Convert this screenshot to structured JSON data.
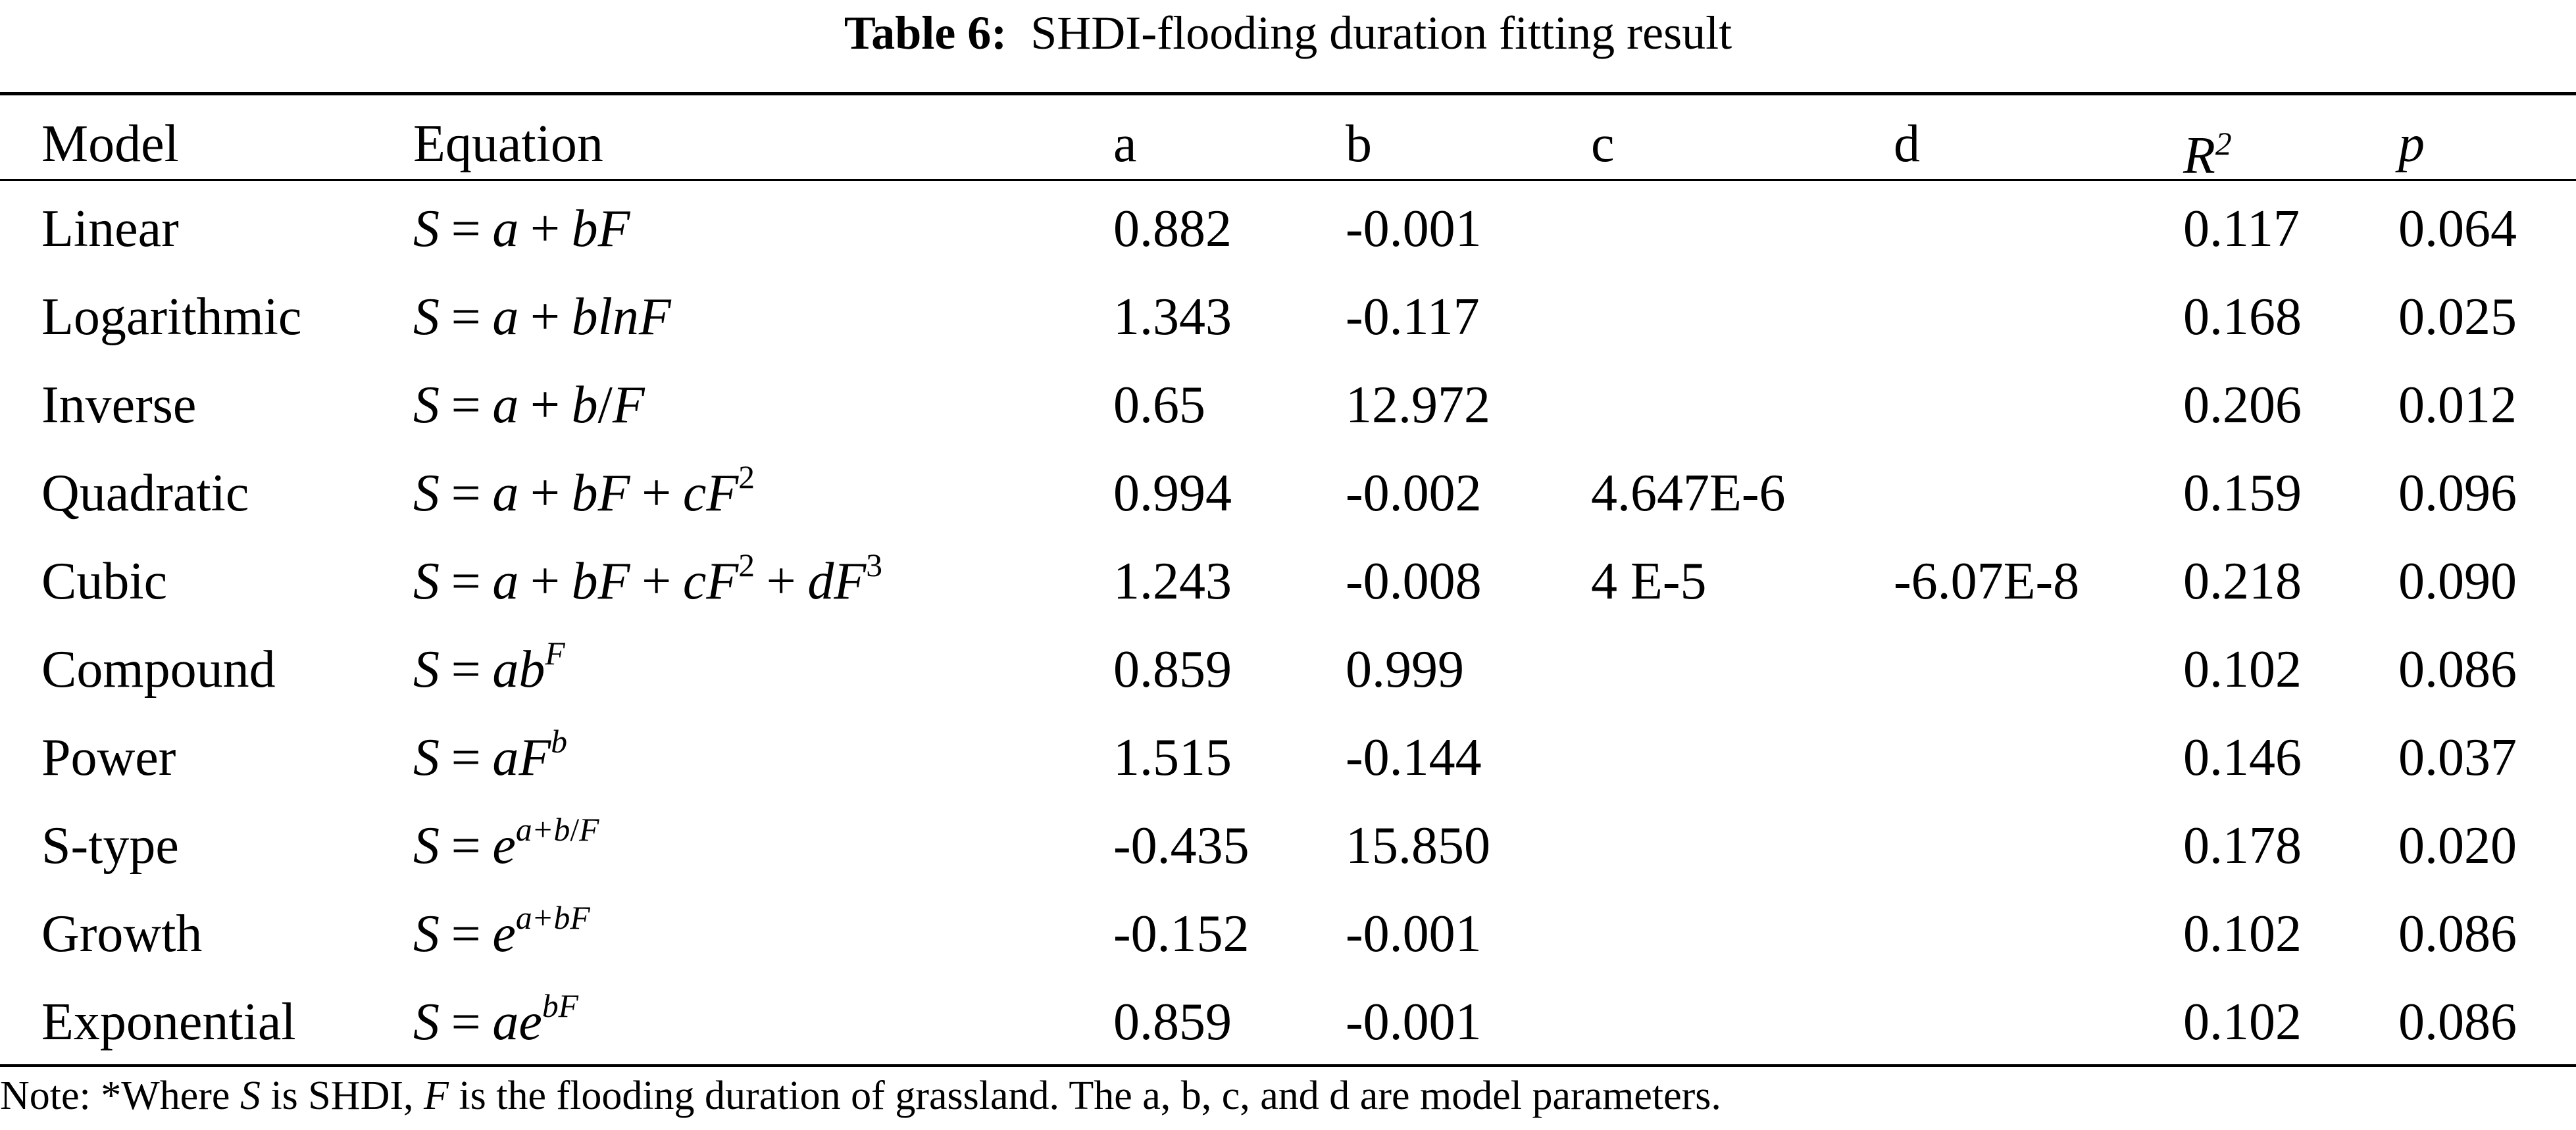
{
  "caption": {
    "label": "Table 6:",
    "text": "SHDI-flooding duration fitting result"
  },
  "headers": {
    "model": "Model",
    "equation": "Equation",
    "a": "a",
    "b": "b",
    "c": "c",
    "d": "d",
    "r2_base": "R",
    "r2_exp": "2",
    "p": "p"
  },
  "rows": [
    {
      "model": "Linear",
      "a": "0.882",
      "b": "-0.001",
      "c": "",
      "d": "",
      "r2": "0.117",
      "p": "0.064"
    },
    {
      "model": "Logarithmic",
      "a": "1.343",
      "b": "-0.117",
      "c": "",
      "d": "",
      "r2": "0.168",
      "p": "0.025"
    },
    {
      "model": "Inverse",
      "a": "0.65",
      "b": "12.972",
      "c": "",
      "d": "",
      "r2": "0.206",
      "p": "0.012"
    },
    {
      "model": "Quadratic",
      "a": "0.994",
      "b": "-0.002",
      "c": "4.647E-6",
      "d": "",
      "r2": "0.159",
      "p": "0.096"
    },
    {
      "model": "Cubic",
      "a": "1.243",
      "b": "-0.008",
      "c": "4 E-5",
      "d": "-6.07E-8",
      "r2": "0.218",
      "p": "0.090"
    },
    {
      "model": "Compound",
      "a": "0.859",
      "b": "0.999",
      "c": "",
      "d": "",
      "r2": "0.102",
      "p": "0.086"
    },
    {
      "model": "Power",
      "a": "1.515",
      "b": "-0.144",
      "c": "",
      "d": "",
      "r2": "0.146",
      "p": "0.037"
    },
    {
      "model": "S-type",
      "a": "-0.435",
      "b": "15.850",
      "c": "",
      "d": "",
      "r2": "0.178",
      "p": "0.020"
    },
    {
      "model": "Growth",
      "a": "-0.152",
      "b": "-0.001",
      "c": "",
      "d": "",
      "r2": "0.102",
      "p": "0.086"
    },
    {
      "model": "Exponential",
      "a": "0.859",
      "b": "-0.001",
      "c": "",
      "d": "",
      "r2": "0.102",
      "p": "0.086"
    }
  ],
  "equations": {
    "lhs": "S",
    "eq": "=",
    "plus": "+",
    "a": "a",
    "b": "b",
    "c": "c",
    "d": "d",
    "F": "F",
    "e": "e",
    "ln": "ln",
    "slash": "/",
    "two": "2",
    "three": "3"
  },
  "note": {
    "prefix": "Note: *Where ",
    "s": "S",
    "mid1": " is SHDI, ",
    "f": "F",
    "rest": " is the flooding duration of grassland. The a, b, c, and d are model parameters."
  }
}
